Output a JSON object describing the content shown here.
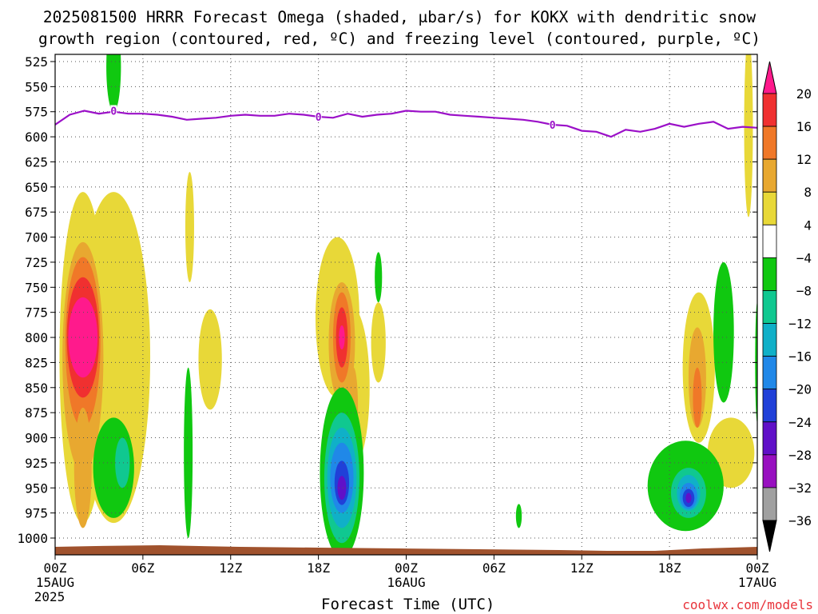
{
  "title_line1": "2025081500 HRRR Forecast Omega (shaded, μbar/s) for KOKX with dendritic snow",
  "title_line2": "growth region (contoured, red, ºC) and freezing level (contoured, purple, ºC)",
  "credit": "coolwx.com/models",
  "colors": {
    "freezing_line": "#9b10c8",
    "ground": "#a0522d",
    "grid": "#555555"
  },
  "chart_data": {
    "type": "heatmap",
    "xlabel": "Forecast Time (UTC)",
    "x_ticks": [
      {
        "hour": 0,
        "label": "00Z",
        "sub1": "15AUG",
        "sub2": "2025"
      },
      {
        "hour": 6,
        "label": "06Z",
        "sub1": "",
        "sub2": ""
      },
      {
        "hour": 12,
        "label": "12Z",
        "sub1": "",
        "sub2": ""
      },
      {
        "hour": 18,
        "label": "18Z",
        "sub1": "",
        "sub2": ""
      },
      {
        "hour": 24,
        "label": "00Z",
        "sub1": "16AUG",
        "sub2": ""
      },
      {
        "hour": 30,
        "label": "06Z",
        "sub1": "",
        "sub2": ""
      },
      {
        "hour": 36,
        "label": "12Z",
        "sub1": "",
        "sub2": ""
      },
      {
        "hour": 42,
        "label": "18Z",
        "sub1": "",
        "sub2": ""
      },
      {
        "hour": 48,
        "label": "00Z",
        "sub1": "17AUG",
        "sub2": ""
      }
    ],
    "xlim": [
      0,
      48
    ],
    "ylim": [
      1025,
      515
    ],
    "y_ticks": [
      525,
      550,
      575,
      600,
      625,
      650,
      675,
      700,
      725,
      750,
      775,
      800,
      825,
      850,
      875,
      900,
      925,
      950,
      975,
      1000
    ],
    "grid": true,
    "colorbar": {
      "levels": [
        "20",
        "16",
        "12",
        "8",
        "4",
        "−4",
        "−8",
        "−12",
        "−16",
        "−20",
        "−24",
        "−28",
        "−32",
        "−36"
      ],
      "colors": [
        "#ff1a8c",
        "#f03030",
        "#f07828",
        "#e8a830",
        "#e8d838",
        "#ffffff",
        "#10c810",
        "#10c890",
        "#10b0c8",
        "#2088e8",
        "#2040d8",
        "#6010c8",
        "#9810c0",
        "#a0a0a0",
        "#000000"
      ]
    },
    "freezing_level": [
      {
        "t": 0.0,
        "p": 588
      },
      {
        "t": 1.0,
        "p": 578
      },
      {
        "t": 2.0,
        "p": 574
      },
      {
        "t": 3.0,
        "p": 577
      },
      {
        "t": 4.0,
        "p": 575
      },
      {
        "t": 5.0,
        "p": 577
      },
      {
        "t": 6.0,
        "p": 577
      },
      {
        "t": 7.0,
        "p": 578
      },
      {
        "t": 8.0,
        "p": 580
      },
      {
        "t": 9.0,
        "p": 583
      },
      {
        "t": 10.0,
        "p": 582
      },
      {
        "t": 11.0,
        "p": 581
      },
      {
        "t": 12.0,
        "p": 579
      },
      {
        "t": 13.0,
        "p": 578
      },
      {
        "t": 14.0,
        "p": 579
      },
      {
        "t": 15.0,
        "p": 579
      },
      {
        "t": 16.0,
        "p": 577
      },
      {
        "t": 17.0,
        "p": 578
      },
      {
        "t": 18.0,
        "p": 580
      },
      {
        "t": 19.0,
        "p": 581
      },
      {
        "t": 20.0,
        "p": 577
      },
      {
        "t": 21.0,
        "p": 580
      },
      {
        "t": 22.0,
        "p": 578
      },
      {
        "t": 23.0,
        "p": 577
      },
      {
        "t": 24.0,
        "p": 574
      },
      {
        "t": 25.0,
        "p": 575
      },
      {
        "t": 26.0,
        "p": 575
      },
      {
        "t": 27.0,
        "p": 578
      },
      {
        "t": 28.0,
        "p": 579
      },
      {
        "t": 29.0,
        "p": 580
      },
      {
        "t": 30.0,
        "p": 581
      },
      {
        "t": 31.0,
        "p": 582
      },
      {
        "t": 32.0,
        "p": 583
      },
      {
        "t": 33.0,
        "p": 585
      },
      {
        "t": 34.0,
        "p": 588
      },
      {
        "t": 35.0,
        "p": 589
      },
      {
        "t": 36.0,
        "p": 594
      },
      {
        "t": 37.0,
        "p": 595
      },
      {
        "t": 38.0,
        "p": 600
      },
      {
        "t": 39.0,
        "p": 593
      },
      {
        "t": 40.0,
        "p": 595
      },
      {
        "t": 41.0,
        "p": 592
      },
      {
        "t": 42.0,
        "p": 587
      },
      {
        "t": 43.0,
        "p": 590
      },
      {
        "t": 44.0,
        "p": 587
      },
      {
        "t": 45.0,
        "p": 585
      },
      {
        "t": 46.0,
        "p": 592
      },
      {
        "t": 47.0,
        "p": 590
      },
      {
        "t": 48.0,
        "p": 591
      }
    ],
    "freezing_labels": [
      {
        "t": 4.0,
        "p": 574,
        "text": "0"
      },
      {
        "t": 18.0,
        "p": 580,
        "text": "0"
      },
      {
        "t": 34.0,
        "p": 588,
        "text": "0"
      }
    ],
    "omega_regions": [
      {
        "level": "4",
        "t": 4.0,
        "p": 820,
        "rt": 2.5,
        "rp": 165
      },
      {
        "level": "4",
        "t": 1.9,
        "p": 820,
        "rt": 1.6,
        "rp": 165
      },
      {
        "level": "8",
        "t": 1.9,
        "p": 820,
        "rt": 1.4,
        "rp": 115
      },
      {
        "level": "12",
        "t": 1.9,
        "p": 805,
        "rt": 1.2,
        "rp": 85
      },
      {
        "level": "16",
        "t": 1.9,
        "p": 800,
        "rt": 1.1,
        "rp": 60
      },
      {
        "level": "20",
        "t": 1.9,
        "p": 800,
        "rt": 1.0,
        "rp": 40
      },
      {
        "level": "8",
        "t": 1.9,
        "p": 930,
        "rt": 0.6,
        "rp": 60
      },
      {
        "level": "4",
        "t": 9.2,
        "p": 690,
        "rt": 0.3,
        "rp": 55
      },
      {
        "level": "4",
        "t": 10.6,
        "p": 822,
        "rt": 0.8,
        "rp": 50
      },
      {
        "level": "4",
        "t": 19.3,
        "p": 780,
        "rt": 1.5,
        "rp": 80
      },
      {
        "level": "4",
        "t": 20.3,
        "p": 850,
        "rt": 1.2,
        "rp": 80
      },
      {
        "level": "8",
        "t": 19.6,
        "p": 805,
        "rt": 0.9,
        "rp": 60
      },
      {
        "level": "12",
        "t": 19.6,
        "p": 800,
        "rt": 0.6,
        "rp": 45
      },
      {
        "level": "16",
        "t": 19.6,
        "p": 800,
        "rt": 0.4,
        "rp": 30
      },
      {
        "level": "20",
        "t": 19.6,
        "p": 800,
        "rt": 0.2,
        "rp": 12
      },
      {
        "level": "8",
        "t": 20.4,
        "p": 870,
        "rt": 0.3,
        "rp": 40
      },
      {
        "level": "4",
        "t": 22.1,
        "p": 805,
        "rt": 0.5,
        "rp": 40
      },
      {
        "level": "4",
        "t": 44.0,
        "p": 830,
        "rt": 1.1,
        "rp": 75
      },
      {
        "level": "8",
        "t": 43.9,
        "p": 840,
        "rt": 0.6,
        "rp": 50
      },
      {
        "level": "12",
        "t": 43.9,
        "p": 860,
        "rt": 0.3,
        "rp": 30
      },
      {
        "level": "4",
        "t": 46.2,
        "p": 915,
        "rt": 1.6,
        "rp": 35
      },
      {
        "level": "-4",
        "t": 4.0,
        "p": 530,
        "rt": 0.5,
        "rp": 45
      },
      {
        "level": "-4",
        "t": 4.0,
        "p": 930,
        "rt": 1.4,
        "rp": 50
      },
      {
        "level": "-8",
        "t": 4.6,
        "p": 925,
        "rt": 0.5,
        "rp": 25
      },
      {
        "level": "-4",
        "t": 9.1,
        "p": 915,
        "rt": 0.3,
        "rp": 85
      },
      {
        "level": "-4",
        "t": 19.6,
        "p": 935,
        "rt": 1.5,
        "rp": 85
      },
      {
        "level": "-8",
        "t": 19.6,
        "p": 940,
        "rt": 1.2,
        "rp": 65
      },
      {
        "level": "-12",
        "t": 19.6,
        "p": 940,
        "rt": 1.0,
        "rp": 50
      },
      {
        "level": "-16",
        "t": 19.6,
        "p": 940,
        "rt": 0.8,
        "rp": 35
      },
      {
        "level": "-20",
        "t": 19.6,
        "p": 945,
        "rt": 0.5,
        "rp": 22
      },
      {
        "level": "-24",
        "t": 19.6,
        "p": 950,
        "rt": 0.3,
        "rp": 12
      },
      {
        "level": "-4",
        "t": 22.1,
        "p": 740,
        "rt": 0.25,
        "rp": 25
      },
      {
        "level": "-4",
        "t": 31.7,
        "p": 978,
        "rt": 0.2,
        "rp": 12
      },
      {
        "level": "-4",
        "t": 43.1,
        "p": 948,
        "rt": 2.6,
        "rp": 45
      },
      {
        "level": "-8",
        "t": 43.3,
        "p": 955,
        "rt": 1.2,
        "rp": 25
      },
      {
        "level": "-12",
        "t": 43.3,
        "p": 955,
        "rt": 0.8,
        "rp": 18
      },
      {
        "level": "-16",
        "t": 43.3,
        "p": 958,
        "rt": 0.6,
        "rp": 13
      },
      {
        "level": "-20",
        "t": 43.3,
        "p": 960,
        "rt": 0.4,
        "rp": 9
      },
      {
        "level": "-24",
        "t": 43.3,
        "p": 960,
        "rt": 0.2,
        "rp": 5
      },
      {
        "level": "-4",
        "t": 45.7,
        "p": 795,
        "rt": 0.7,
        "rp": 70
      },
      {
        "level": "4",
        "t": 47.4,
        "p": 590,
        "rt": 0.3,
        "rp": 90
      },
      {
        "level": "-4",
        "t": 48.0,
        "p": 825,
        "rt": 0.15,
        "rp": 60
      }
    ]
  }
}
